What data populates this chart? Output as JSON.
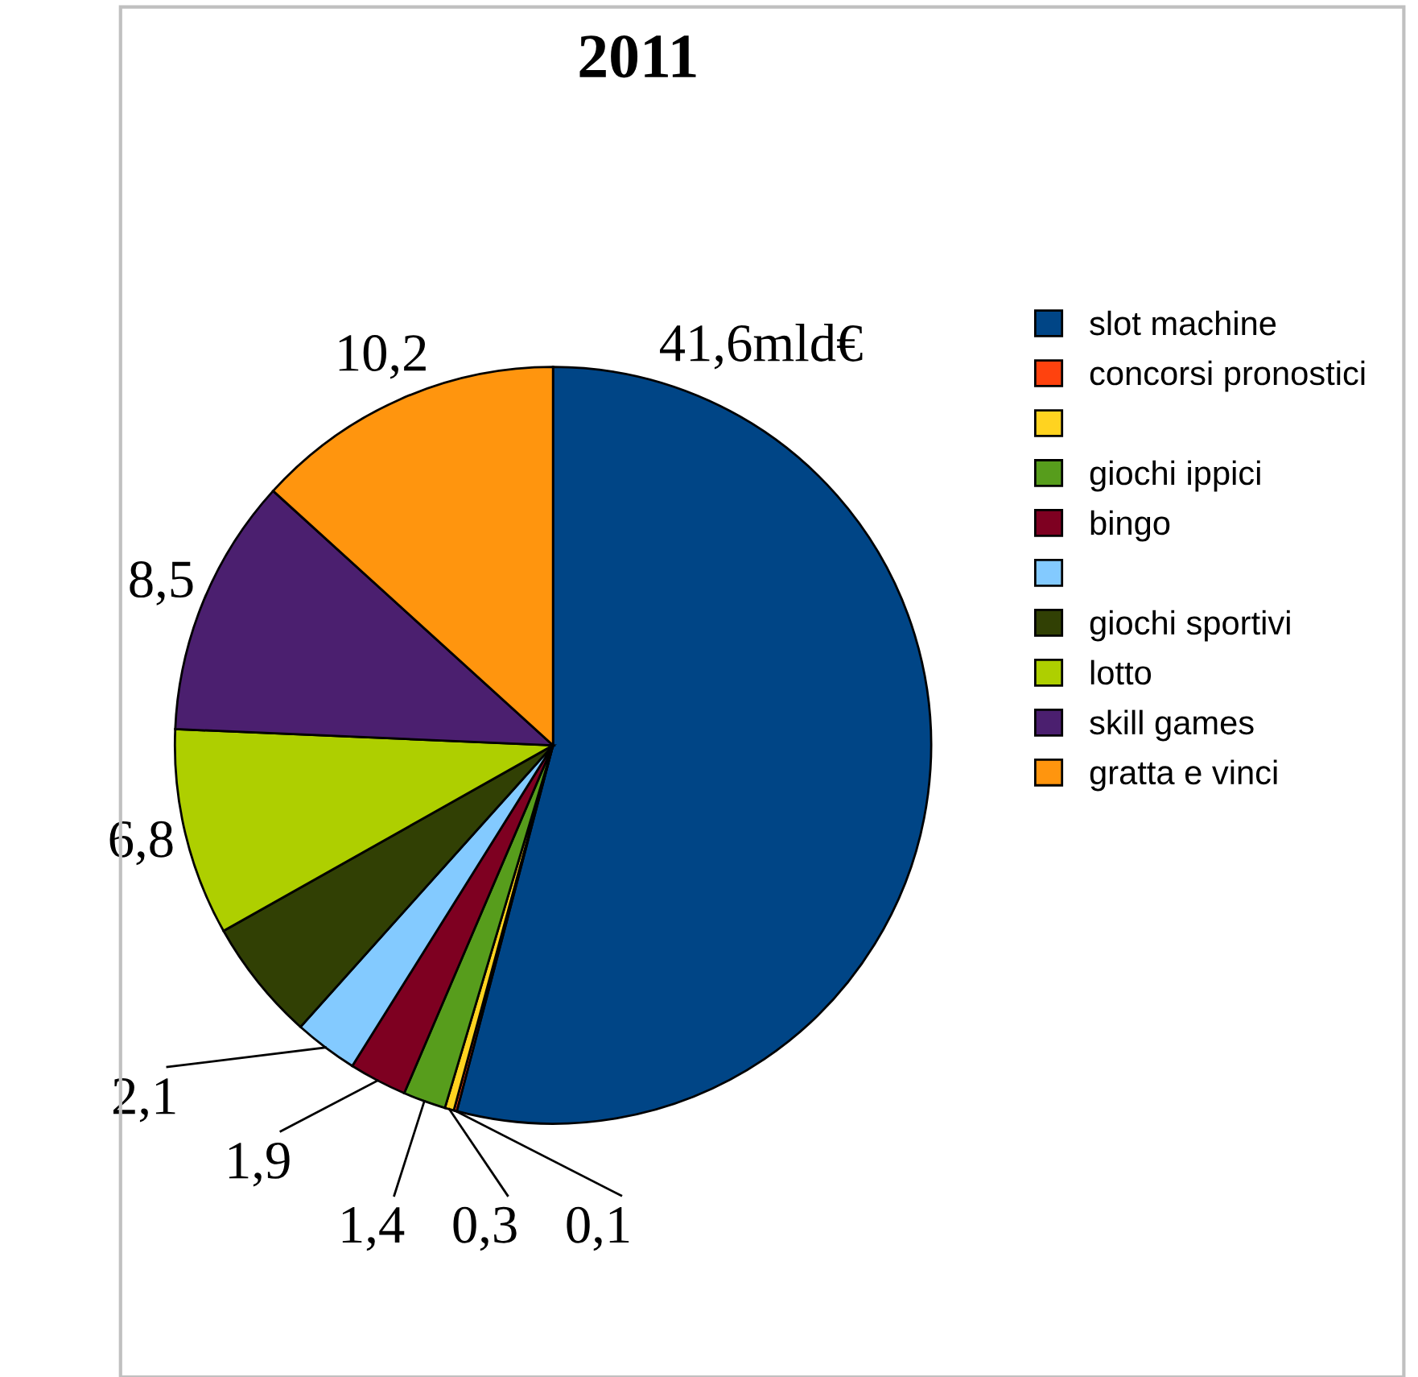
{
  "chart_data": {
    "type": "pie",
    "title": "2011",
    "categories": [
      "slot machine",
      "concorsi pronostici",
      null,
      "giochi ippici",
      "bingo",
      null,
      "giochi sportivi",
      "lotto",
      "skill games",
      "gratta e vinci"
    ],
    "values": [
      41.6,
      0.1,
      0.3,
      1.4,
      1.9,
      2.1,
      4.0,
      6.8,
      8.5,
      10.2
    ],
    "value_labels": [
      "41,6mld€",
      "0,1",
      "0,3",
      "1,4",
      "1,9",
      "2,1",
      null,
      "6,8",
      "8,5",
      "10,2"
    ],
    "colors": [
      "#004586",
      "#ff420e",
      "#ffd320",
      "#579d1c",
      "#7e0021",
      "#83caff",
      "#314004",
      "#aecf00",
      "#4b1f6f",
      "#ff950e"
    ],
    "legend": "right"
  }
}
